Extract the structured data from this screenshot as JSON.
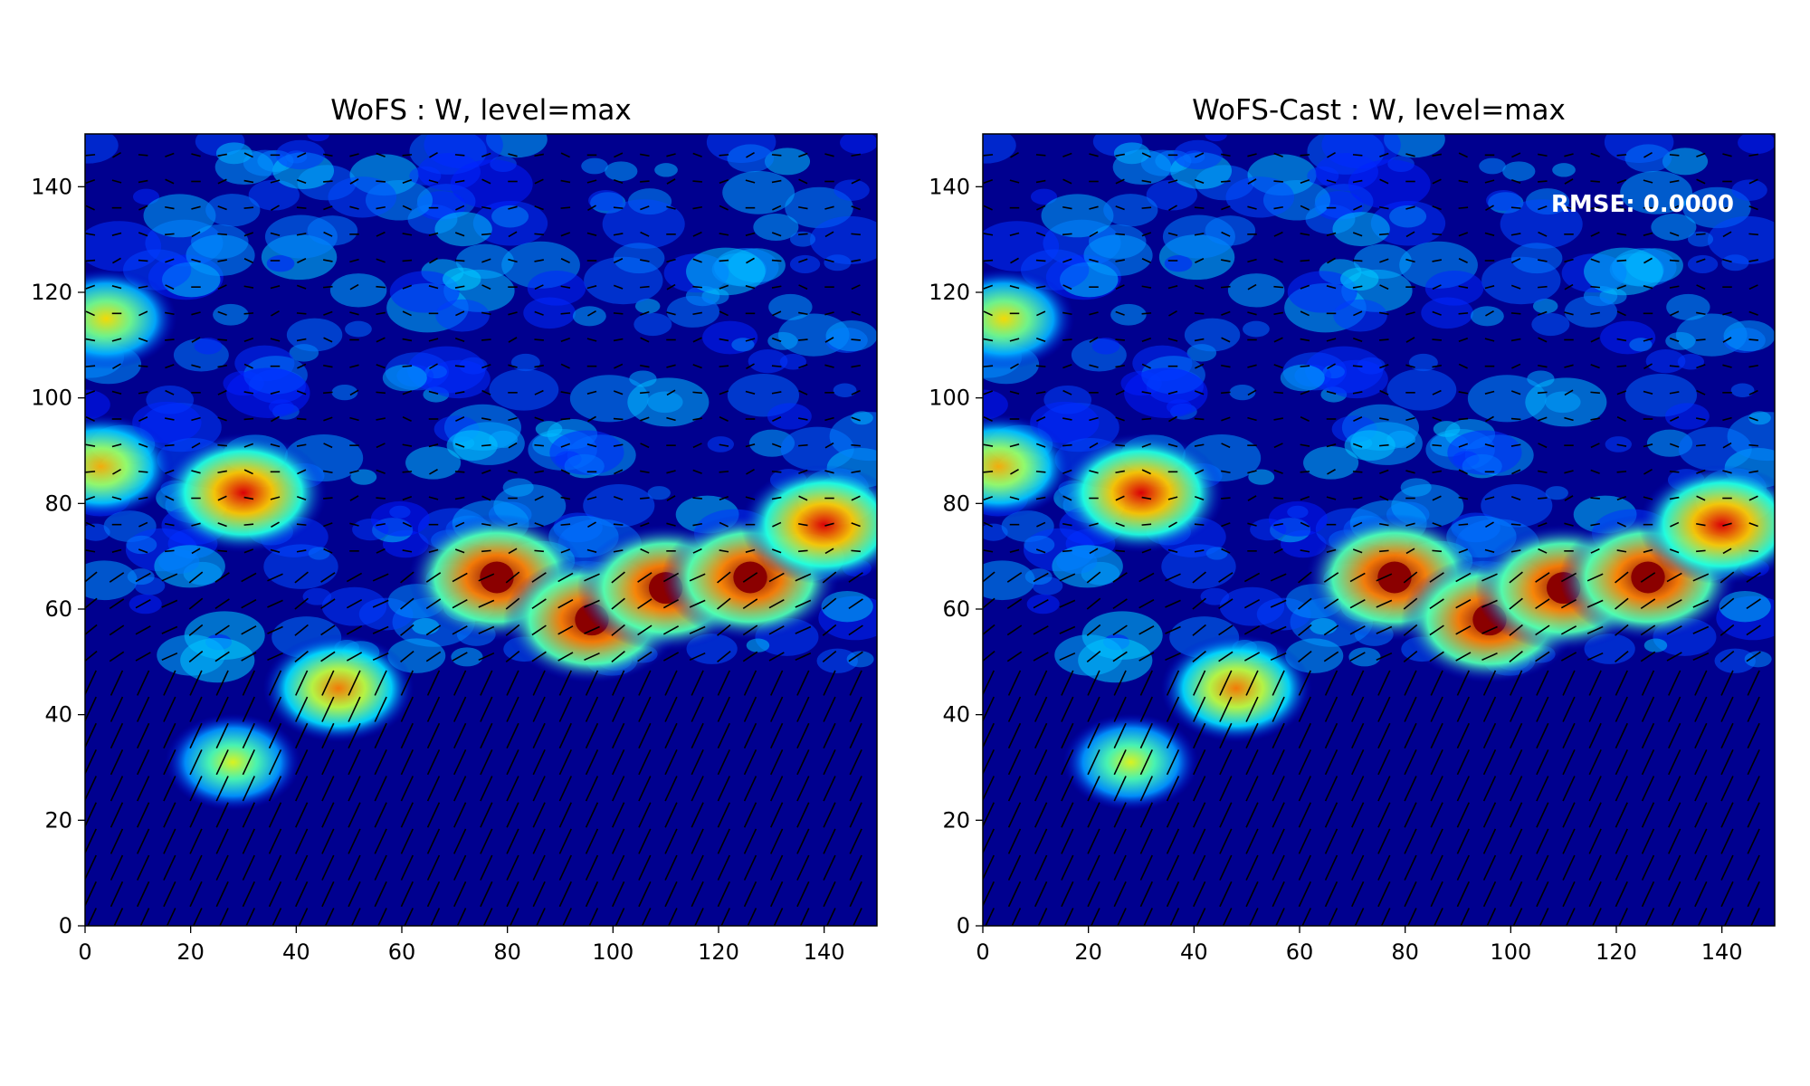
{
  "chart_data": [
    {
      "type": "heatmap",
      "title": "WoFS : W, level=max",
      "xlabel": "",
      "ylabel": "",
      "xlim": [
        0,
        150
      ],
      "ylim": [
        0,
        150
      ],
      "xticks": [
        "0",
        "20",
        "40",
        "60",
        "80",
        "100",
        "120",
        "140"
      ],
      "yticks": [
        "0",
        "20",
        "40",
        "60",
        "80",
        "100",
        "120",
        "140"
      ],
      "colormap": "jet",
      "overlay": "wind vectors (quiver)",
      "grid": false,
      "features": [
        {
          "x": 78,
          "y": 66,
          "intensity": 1.0
        },
        {
          "x": 96,
          "y": 58,
          "intensity": 1.0
        },
        {
          "x": 110,
          "y": 64,
          "intensity": 1.0
        },
        {
          "x": 126,
          "y": 66,
          "intensity": 1.0
        },
        {
          "x": 140,
          "y": 76,
          "intensity": 0.9
        },
        {
          "x": 30,
          "y": 82,
          "intensity": 0.9
        },
        {
          "x": 48,
          "y": 45,
          "intensity": 0.75
        },
        {
          "x": 28,
          "y": 31,
          "intensity": 0.6
        },
        {
          "x": 3,
          "y": 87,
          "intensity": 0.7
        },
        {
          "x": 4,
          "y": 115,
          "intensity": 0.65
        }
      ]
    },
    {
      "type": "heatmap",
      "title": "WoFS-Cast : W, level=max",
      "xlabel": "",
      "ylabel": "",
      "xlim": [
        0,
        150
      ],
      "ylim": [
        0,
        150
      ],
      "xticks": [
        "0",
        "20",
        "40",
        "60",
        "80",
        "100",
        "120",
        "140"
      ],
      "yticks": [
        "0",
        "20",
        "40",
        "60",
        "80",
        "100",
        "120",
        "140"
      ],
      "colormap": "jet",
      "overlay": "wind vectors (quiver)",
      "grid": false,
      "annotation": "RMSE: 0.0000",
      "features": [
        {
          "x": 78,
          "y": 66,
          "intensity": 1.0
        },
        {
          "x": 96,
          "y": 58,
          "intensity": 1.0
        },
        {
          "x": 110,
          "y": 64,
          "intensity": 1.0
        },
        {
          "x": 126,
          "y": 66,
          "intensity": 1.0
        },
        {
          "x": 140,
          "y": 76,
          "intensity": 0.9
        },
        {
          "x": 30,
          "y": 82,
          "intensity": 0.9
        },
        {
          "x": 48,
          "y": 45,
          "intensity": 0.75
        },
        {
          "x": 28,
          "y": 31,
          "intensity": 0.6
        },
        {
          "x": 3,
          "y": 87,
          "intensity": 0.7
        },
        {
          "x": 4,
          "y": 115,
          "intensity": 0.65
        }
      ]
    }
  ],
  "colors": {
    "background": "#00008f",
    "axis": "#000000"
  }
}
